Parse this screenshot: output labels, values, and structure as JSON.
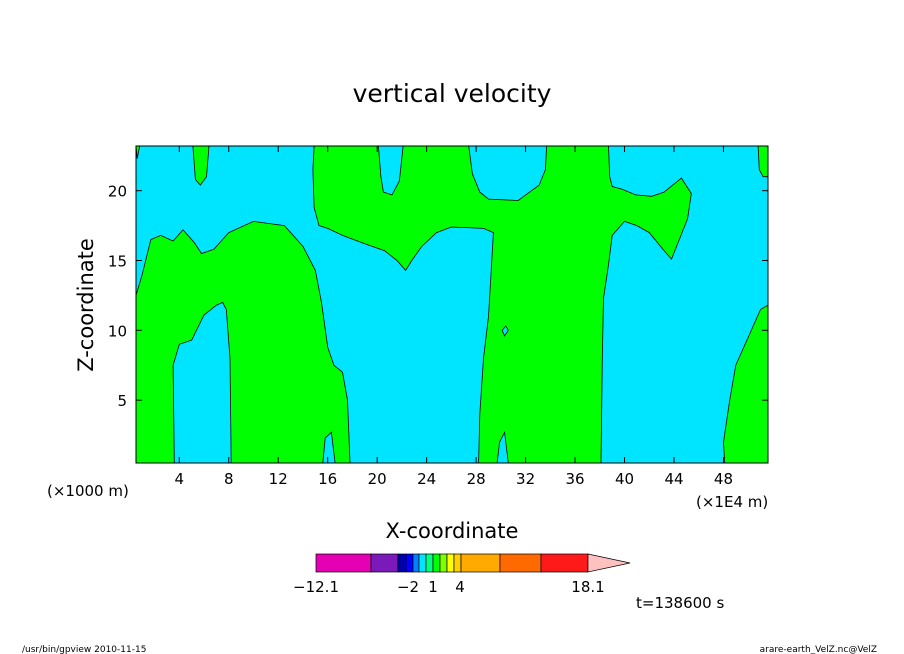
{
  "chart_data": {
    "type": "contour",
    "title": "vertical velocity",
    "xlabel": "X-coordinate",
    "ylabel": "Z-coordinate",
    "x_unit_left": "(×1000 m)",
    "x_unit_right": "(×1E4 m)",
    "x_ticks": [
      4,
      8,
      12,
      16,
      20,
      24,
      28,
      32,
      36,
      40,
      44,
      48
    ],
    "y_ticks": [
      5,
      10,
      15,
      20
    ],
    "xlim": [
      0.5,
      51.6
    ],
    "ylim": [
      0.5,
      23.2
    ],
    "colors": {
      "positive": "#00ff00",
      "negative": "#00e5ff",
      "contour": "#000000"
    },
    "regions": [
      {
        "sign": "positive",
        "points": [
          [
            0.5,
            12.5
          ],
          [
            1,
            14
          ],
          [
            1.7,
            16.5
          ],
          [
            2.5,
            16.8
          ],
          [
            3.5,
            16.4
          ],
          [
            4.3,
            17.2
          ],
          [
            5.2,
            16.3
          ],
          [
            5.8,
            15.5
          ],
          [
            6.8,
            15.8
          ],
          [
            8,
            17
          ],
          [
            10,
            17.8
          ],
          [
            12.5,
            17.5
          ],
          [
            14,
            16
          ],
          [
            15,
            14.3
          ],
          [
            15.5,
            12
          ],
          [
            16,
            8.8
          ],
          [
            16.5,
            7.5
          ],
          [
            17.2,
            7
          ],
          [
            17.6,
            5
          ],
          [
            17.8,
            0.5
          ],
          [
            16.6,
            0.5
          ],
          [
            16.3,
            2.7
          ],
          [
            15.8,
            2.3
          ],
          [
            15.6,
            0.5
          ],
          [
            8.2,
            0.5
          ],
          [
            8.1,
            8
          ],
          [
            7.8,
            11.5
          ],
          [
            7.5,
            12
          ],
          [
            7,
            11.8
          ],
          [
            6,
            11.1
          ],
          [
            5,
            9.3
          ],
          [
            4,
            9
          ],
          [
            3.5,
            7.5
          ],
          [
            3.6,
            0.5
          ],
          [
            0.5,
            0.5
          ]
        ]
      },
      {
        "sign": "positive",
        "points": [
          [
            28.2,
            0.5
          ],
          [
            28.3,
            4
          ],
          [
            28.6,
            8
          ],
          [
            29,
            11
          ],
          [
            29.2,
            14
          ],
          [
            29.4,
            17
          ],
          [
            28.6,
            17.3
          ],
          [
            26,
            17.4
          ],
          [
            24.8,
            17
          ],
          [
            23.6,
            16
          ],
          [
            22.8,
            15
          ],
          [
            22.3,
            14.3
          ],
          [
            21.6,
            15
          ],
          [
            20.6,
            15.7
          ],
          [
            19,
            16.2
          ],
          [
            17.2,
            16.8
          ],
          [
            16,
            17.3
          ],
          [
            15.3,
            17.5
          ],
          [
            14.9,
            18.8
          ],
          [
            14.8,
            21.5
          ],
          [
            14.9,
            23.2
          ],
          [
            20.1,
            23.2
          ],
          [
            20.3,
            21
          ],
          [
            20.5,
            19.9
          ],
          [
            21.2,
            19.7
          ],
          [
            21.8,
            20.7
          ],
          [
            22.1,
            23.2
          ],
          [
            27.4,
            23.2
          ],
          [
            27.7,
            21.2
          ],
          [
            28.3,
            19.9
          ],
          [
            29,
            19.4
          ],
          [
            31.4,
            19.3
          ],
          [
            33.1,
            20.4
          ],
          [
            33.6,
            21.5
          ],
          [
            33.7,
            23.2
          ],
          [
            38.7,
            23.2
          ],
          [
            38.8,
            21
          ],
          [
            39,
            20.3
          ],
          [
            39.8,
            20.1
          ],
          [
            40.9,
            19.7
          ],
          [
            42.2,
            19.6
          ],
          [
            43.2,
            19.9
          ],
          [
            44.6,
            20.9
          ],
          [
            45.4,
            19.8
          ],
          [
            45.1,
            18
          ],
          [
            44.2,
            16
          ],
          [
            43.8,
            15.1
          ],
          [
            43.1,
            15.8
          ],
          [
            42,
            17
          ],
          [
            41,
            17.5
          ],
          [
            40,
            17.8
          ],
          [
            39,
            16.8
          ],
          [
            38.7,
            14.7
          ],
          [
            38.3,
            12.3
          ],
          [
            38.2,
            8
          ],
          [
            38.1,
            0.5
          ],
          [
            30.6,
            0.5
          ],
          [
            30.3,
            2.7
          ],
          [
            29.9,
            2
          ],
          [
            29.7,
            0.5
          ]
        ]
      },
      {
        "sign": "positive",
        "points": [
          [
            5.1,
            23.2
          ],
          [
            5.3,
            20.8
          ],
          [
            5.7,
            20.4
          ],
          [
            6.2,
            21
          ],
          [
            6.4,
            23.2
          ]
        ]
      },
      {
        "sign": "positive",
        "points": [
          [
            48.1,
            0.5
          ],
          [
            48,
            2
          ],
          [
            48.5,
            5
          ],
          [
            49,
            7.5
          ],
          [
            50,
            9.5
          ],
          [
            51,
            11.5
          ],
          [
            51.6,
            11.8
          ],
          [
            51.6,
            0.5
          ]
        ]
      },
      {
        "sign": "positive",
        "points": [
          [
            50.8,
            23.2
          ],
          [
            50.9,
            21.5
          ],
          [
            51.2,
            21
          ],
          [
            51.6,
            21
          ],
          [
            51.6,
            23.2
          ]
        ]
      },
      {
        "sign": "positive",
        "points": [
          [
            0.5,
            23.2
          ],
          [
            0.6,
            22.3
          ],
          [
            0.8,
            23.2
          ]
        ]
      },
      {
        "sign": "negative",
        "points": [
          [
            30.1,
            10
          ],
          [
            30.4,
            10.3
          ],
          [
            30.6,
            10
          ],
          [
            30.3,
            9.6
          ]
        ]
      }
    ],
    "colorbar": {
      "colors": [
        "#e600b4",
        "#7a1aba",
        "#0000aa",
        "#0000ff",
        "#0080ff",
        "#00e5ff",
        "#00ff7f",
        "#00ff00",
        "#7fff00",
        "#ffff00",
        "#ffd000",
        "#ffaa00",
        "#ff6a00",
        "#ff1a1a",
        "#ff7b7b"
      ],
      "triangle_color": "#ffc0c0",
      "labels": [
        "-12.1",
        "-2",
        "1",
        "4",
        "18.1"
      ]
    },
    "time_label": "t=138600 s"
  },
  "footer": {
    "left": "/usr/bin/gpview   2010-11-15",
    "right": "arare-earth_VelZ.nc@VelZ"
  }
}
